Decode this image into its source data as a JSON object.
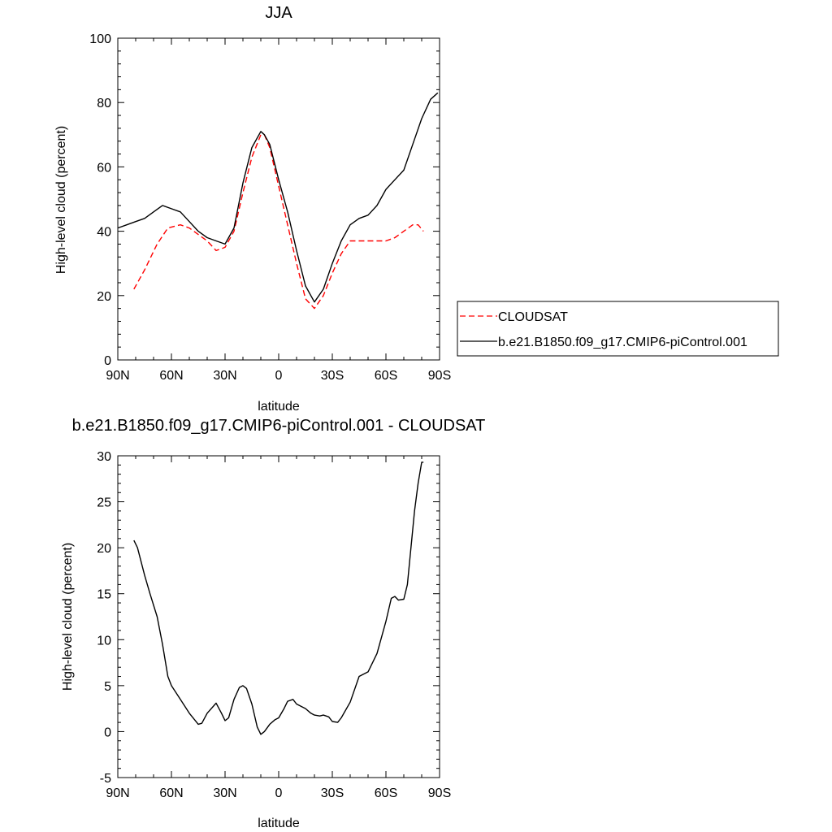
{
  "chart_data": [
    {
      "type": "line",
      "title": "JJA",
      "xlabel": "latitude",
      "ylabel": "High-level cloud (percent)",
      "xlim": [
        -90,
        90
      ],
      "ylim": [
        0,
        100
      ],
      "x_ticks": [
        -90,
        -60,
        -30,
        0,
        30,
        60,
        90
      ],
      "x_tick_labels": [
        "90N",
        "60N",
        "30N",
        "0",
        "30S",
        "60S",
        "90S"
      ],
      "y_ticks": [
        0,
        20,
        40,
        60,
        80,
        100
      ],
      "y_tick_labels": [
        "0",
        "20",
        "40",
        "60",
        "80",
        "100"
      ],
      "legend": {
        "placement": "right"
      },
      "series": [
        {
          "name": "CLOUDSAT",
          "color": "#ff0000",
          "dash": "dashed",
          "x": [
            -81,
            -75,
            -68,
            -62,
            -55,
            -50,
            -45,
            -40,
            -35,
            -30,
            -25,
            -20,
            -15,
            -10,
            -8,
            -5,
            0,
            5,
            10,
            15,
            20,
            25,
            30,
            35,
            40,
            45,
            50,
            55,
            60,
            65,
            70,
            75,
            78,
            81
          ],
          "y": [
            22,
            28,
            36,
            41,
            42,
            41,
            39,
            37,
            34,
            35,
            40,
            52,
            63,
            70,
            70,
            66,
            54,
            42,
            30,
            19,
            16,
            20,
            27,
            33,
            37,
            37,
            37,
            37,
            37,
            38,
            40,
            42,
            42,
            40
          ]
        },
        {
          "name": "b.e21.B1850.f09_g17.CMIP6-piControl.001",
          "color": "#000000",
          "dash": "solid",
          "x": [
            -90,
            -85,
            -80,
            -75,
            -70,
            -65,
            -60,
            -55,
            -50,
            -45,
            -40,
            -35,
            -30,
            -25,
            -20,
            -15,
            -10,
            -8,
            -5,
            0,
            5,
            10,
            15,
            20,
            25,
            30,
            35,
            40,
            45,
            50,
            55,
            60,
            65,
            70,
            75,
            80,
            85,
            89
          ],
          "y": [
            41,
            42,
            43,
            44,
            46,
            48,
            47,
            46,
            43,
            40,
            38,
            37,
            36,
            41,
            55,
            66,
            71,
            70,
            67,
            56,
            46,
            34,
            23,
            18,
            22,
            30,
            37,
            42,
            44,
            45,
            48,
            53,
            56,
            59,
            67,
            75,
            81,
            83
          ]
        }
      ]
    },
    {
      "type": "line",
      "title": "b.e21.B1850.f09_g17.CMIP6-piControl.001 - CLOUDSAT",
      "xlabel": "latitude",
      "ylabel": "High-level cloud (percent)",
      "xlim": [
        -90,
        90
      ],
      "ylim": [
        -5,
        30
      ],
      "x_ticks": [
        -90,
        -60,
        -30,
        0,
        30,
        60,
        90
      ],
      "x_tick_labels": [
        "90N",
        "60N",
        "30N",
        "0",
        "30S",
        "60S",
        "90S"
      ],
      "y_ticks": [
        -5,
        0,
        5,
        10,
        15,
        20,
        25,
        30
      ],
      "y_tick_labels": [
        "-5",
        "0",
        "5",
        "10",
        "15",
        "20",
        "25",
        "30"
      ],
      "series": [
        {
          "color": "#000000",
          "dash": "solid",
          "x": [
            -81,
            -79,
            -75,
            -72,
            -68,
            -65,
            -62,
            -60,
            -55,
            -50,
            -45,
            -43,
            -40,
            -35,
            -32,
            -30,
            -28,
            -25,
            -22,
            -20,
            -18,
            -15,
            -12,
            -10,
            -8,
            -5,
            -2,
            0,
            3,
            5,
            8,
            10,
            12,
            15,
            18,
            20,
            23,
            25,
            28,
            30,
            33,
            35,
            40,
            45,
            48,
            50,
            55,
            60,
            63,
            65,
            67,
            70,
            72,
            74,
            76,
            78,
            80,
            81
          ],
          "y": [
            20.8,
            20,
            17,
            15,
            12.5,
            9.5,
            6,
            5,
            3.5,
            2,
            0.8,
            0.9,
            2,
            3.1,
            2,
            1.2,
            1.5,
            3.5,
            4.8,
            5,
            4.7,
            3,
            0.5,
            -0.3,
            0,
            0.8,
            1.3,
            1.5,
            2.5,
            3.3,
            3.5,
            3,
            2.8,
            2.5,
            2,
            1.8,
            1.7,
            1.8,
            1.6,
            1.1,
            1,
            1.5,
            3.2,
            6,
            6.3,
            6.5,
            8.5,
            12,
            14.5,
            14.7,
            14.3,
            14.4,
            16,
            20,
            24,
            27,
            29.3,
            29.3
          ]
        }
      ]
    }
  ]
}
